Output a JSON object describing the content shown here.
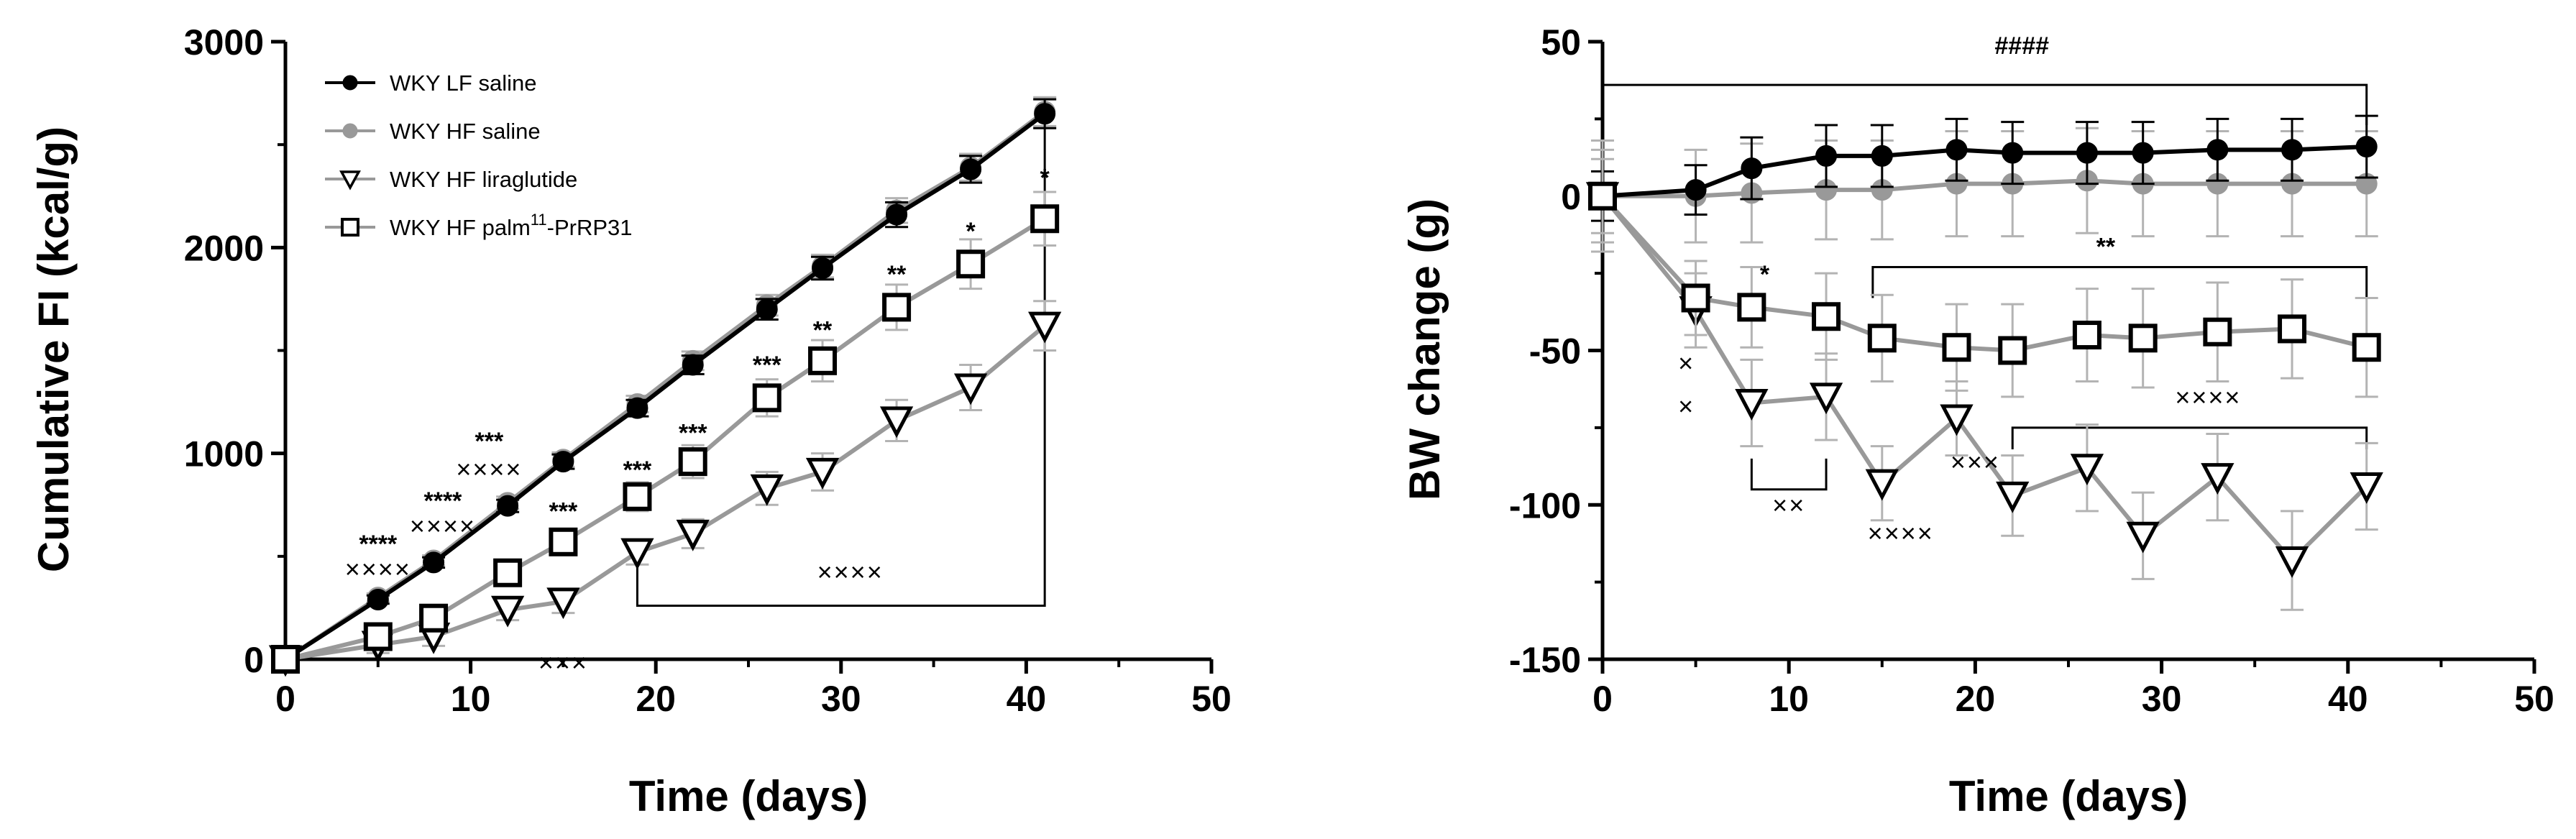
{
  "colors": {
    "black": "#000000",
    "gray": "#999999",
    "errorbar_gray": "#b3b3b3",
    "line": "#000000"
  },
  "chart_data": [
    {
      "type": "line",
      "name": "cumulative-food-intake",
      "xlabel": "Time (days)",
      "ylabel": "Cumulative FI (kcal/g)",
      "xlim": [
        0,
        50
      ],
      "ylim": [
        0,
        3000
      ],
      "xticks": [
        0,
        10,
        20,
        30,
        40,
        50
      ],
      "yticks": [
        0,
        1000,
        2000,
        3000
      ],
      "xtick_labels": [
        "0",
        "10",
        "20",
        "30",
        "40",
        "50"
      ],
      "ytick_labels": [
        "0",
        "1000",
        "2000",
        "3000"
      ],
      "legend_position": "top-left",
      "series": [
        {
          "name": "WKY HF saline",
          "marker": "circle-filled",
          "color": "#999999",
          "x": [
            0,
            5,
            8,
            12,
            15,
            19,
            22,
            26,
            29,
            33,
            37,
            41
          ],
          "y": [
            0,
            300,
            480,
            760,
            970,
            1240,
            1450,
            1720,
            1910,
            2180,
            2390,
            2660
          ],
          "err": [
            0,
            20,
            25,
            30,
            35,
            40,
            45,
            50,
            55,
            60,
            65,
            70
          ]
        },
        {
          "name": "WKY LF saline",
          "marker": "circle-filled",
          "color": "#000000",
          "x": [
            0,
            5,
            8,
            12,
            15,
            19,
            22,
            26,
            29,
            33,
            37,
            41
          ],
          "y": [
            0,
            290,
            470,
            745,
            960,
            1220,
            1430,
            1700,
            1900,
            2160,
            2380,
            2650
          ],
          "err": [
            0,
            20,
            25,
            30,
            35,
            40,
            45,
            50,
            55,
            60,
            65,
            70
          ]
        },
        {
          "name": "WKY HF liraglutide",
          "marker": "triangle-down-open",
          "color": "#999999",
          "x": [
            0,
            5,
            8,
            12,
            15,
            19,
            22,
            26,
            29,
            33,
            37,
            41
          ],
          "y": [
            0,
            70,
            110,
            240,
            280,
            520,
            610,
            830,
            910,
            1160,
            1320,
            1620
          ],
          "err": [
            0,
            40,
            45,
            50,
            55,
            60,
            70,
            80,
            90,
            100,
            110,
            120
          ]
        },
        {
          "name": "WKY HF palm11-PrRP31",
          "marker": "square-open",
          "color": "#999999",
          "x": [
            0,
            5,
            8,
            12,
            15,
            19,
            22,
            26,
            29,
            33,
            37,
            41
          ],
          "y": [
            0,
            110,
            200,
            420,
            570,
            790,
            960,
            1270,
            1450,
            1710,
            1920,
            2140
          ],
          "err": [
            0,
            30,
            40,
            50,
            60,
            70,
            80,
            90,
            100,
            110,
            120,
            130
          ]
        }
      ],
      "legend": [
        {
          "label_main": "WKY LF saline",
          "label_sup": "",
          "label_tail": "",
          "marker": "circle-filled",
          "color": "#000000"
        },
        {
          "label_main": "WKY HF saline",
          "label_sup": "",
          "label_tail": "",
          "marker": "circle-filled",
          "color": "#999999"
        },
        {
          "label_main": "WKY HF liraglutide",
          "label_sup": "",
          "label_tail": "",
          "marker": "triangle-down-open",
          "color": "#999999"
        },
        {
          "label_main": "WKY HF palm",
          "label_sup": "11",
          "label_tail": "-PrRP31",
          "marker": "square-open",
          "color": "#999999"
        }
      ],
      "annotations": [
        {
          "text": "****",
          "x": 5,
          "y": 520,
          "kind": "star"
        },
        {
          "text": "××××",
          "x": 5,
          "y": 395,
          "kind": "cross"
        },
        {
          "text": "****",
          "x": 8.5,
          "y": 730,
          "kind": "star"
        },
        {
          "text": "××××",
          "x": 8.5,
          "y": 605,
          "kind": "cross"
        },
        {
          "text": "***",
          "x": 11,
          "y": 1020,
          "kind": "star"
        },
        {
          "text": "××××",
          "x": 11,
          "y": 880,
          "kind": "cross"
        },
        {
          "text": "***",
          "x": 15,
          "y": 680,
          "kind": "star"
        },
        {
          "text": "×××",
          "x": 15,
          "y": -60,
          "kind": "cross"
        },
        {
          "text": "***",
          "x": 19,
          "y": 880,
          "kind": "star"
        },
        {
          "text": "***",
          "x": 22,
          "y": 1060,
          "kind": "star"
        },
        {
          "text": "***",
          "x": 26,
          "y": 1390,
          "kind": "star"
        },
        {
          "text": "**",
          "x": 29,
          "y": 1560,
          "kind": "star"
        },
        {
          "text": "**",
          "x": 33,
          "y": 1830,
          "kind": "star"
        },
        {
          "text": "*",
          "x": 37,
          "y": 2040,
          "kind": "star"
        },
        {
          "text": "*",
          "x": 41,
          "y": 2300,
          "kind": "star"
        },
        {
          "text": "××××",
          "x": 30.5,
          "y": 380,
          "kind": "cross"
        }
      ],
      "brackets": [
        {
          "x1": 19,
          "x2": 41,
          "y": 260,
          "drop_x1": 490,
          "drop_x2": 2660
        }
      ]
    },
    {
      "type": "line",
      "name": "body-weight-change",
      "xlabel": "Time (days)",
      "ylabel": "BW change (g)",
      "xlim": [
        0,
        50
      ],
      "ylim": [
        -150,
        50
      ],
      "xticks": [
        0,
        10,
        20,
        30,
        40,
        50
      ],
      "yticks": [
        -150,
        -100,
        -50,
        0,
        50
      ],
      "xtick_labels": [
        "0",
        "10",
        "20",
        "30",
        "40",
        "50"
      ],
      "ytick_labels": [
        "-150",
        "-100",
        "-50",
        "0",
        "50"
      ],
      "series": [
        {
          "name": "WKY HF saline",
          "marker": "circle-filled",
          "color": "#999999",
          "x": [
            0,
            5,
            8,
            12,
            15,
            19,
            22,
            26,
            29,
            33,
            37,
            41
          ],
          "y": [
            0,
            0,
            1,
            2,
            2,
            4,
            4,
            5,
            4,
            4,
            4,
            4
          ],
          "err": [
            15,
            15,
            16,
            16,
            16,
            17,
            17,
            17,
            17,
            17,
            17,
            17
          ]
        },
        {
          "name": "WKY LF saline",
          "marker": "circle-filled",
          "color": "#000000",
          "x": [
            0,
            5,
            8,
            12,
            15,
            19,
            22,
            26,
            29,
            33,
            37,
            41
          ],
          "y": [
            0,
            2,
            9,
            13,
            13,
            15,
            14,
            14,
            14,
            15,
            15,
            16
          ],
          "err": [
            8,
            8,
            10,
            10,
            10,
            10,
            10,
            10,
            10,
            10,
            10,
            10
          ]
        },
        {
          "name": "WKY HF liraglutide",
          "marker": "triangle-down-open",
          "color": "#999999",
          "x": [
            0,
            5,
            8,
            12,
            15,
            19,
            22,
            26,
            29,
            33,
            37,
            41
          ],
          "y": [
            0,
            -37,
            -67,
            -65,
            -93,
            -72,
            -97,
            -88,
            -110,
            -91,
            -118,
            -94
          ],
          "err": [
            18,
            12,
            14,
            14,
            12,
            12,
            13,
            14,
            14,
            14,
            16,
            14
          ]
        },
        {
          "name": "WKY HF palm11-PrRP31",
          "marker": "square-open",
          "color": "#999999",
          "x": [
            0,
            5,
            8,
            12,
            15,
            19,
            22,
            26,
            29,
            33,
            37,
            41
          ],
          "y": [
            0,
            -33,
            -36,
            -39,
            -46,
            -49,
            -50,
            -45,
            -46,
            -44,
            -43,
            -49
          ],
          "err": [
            12,
            12,
            13,
            14,
            14,
            14,
            15,
            15,
            16,
            16,
            16,
            16
          ]
        }
      ],
      "annotations": [
        {
          "text": "####",
          "x": 22.5,
          "y": 46,
          "kind": "star"
        },
        {
          "text": "**",
          "x": 27,
          "y": -19,
          "kind": "star"
        },
        {
          "text": "*",
          "x": 8.7,
          "y": -28,
          "kind": "star"
        },
        {
          "text": "×",
          "x": 4.5,
          "y": -57,
          "kind": "cross"
        },
        {
          "text": "×",
          "x": 4.5,
          "y": -71,
          "kind": "cross"
        },
        {
          "text": "××",
          "x": 10,
          "y": -103,
          "kind": "cross"
        },
        {
          "text": "××××",
          "x": 16,
          "y": -112,
          "kind": "cross"
        },
        {
          "text": "×××",
          "x": 20,
          "y": -89,
          "kind": "cross"
        },
        {
          "text": "××××",
          "x": 32.5,
          "y": -68,
          "kind": "cross"
        }
      ],
      "brackets": [
        {
          "x1": 0,
          "x2": 41,
          "y": 36,
          "dir": "down",
          "drop": 13
        },
        {
          "x1": 14.5,
          "x2": 41,
          "y": -23,
          "dir": "down",
          "drop": 10
        },
        {
          "x1": 22,
          "x2": 41,
          "y": -75,
          "dir": "down",
          "drop": 7
        },
        {
          "x1": 8,
          "x2": 12,
          "y": -95,
          "dir": "up",
          "drop": 10
        }
      ]
    }
  ]
}
